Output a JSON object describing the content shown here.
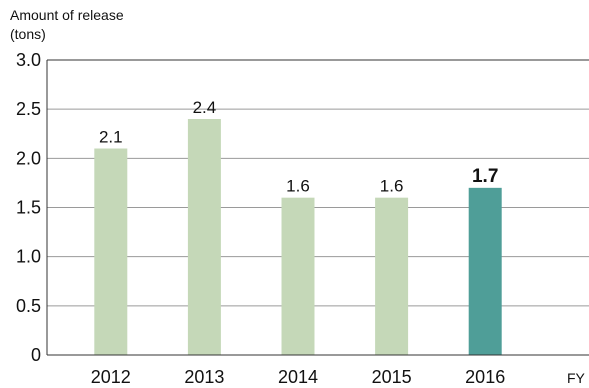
{
  "chart_data": {
    "type": "bar",
    "ylabel_lines": [
      "Amount of release",
      "(tons)"
    ],
    "x_unit": "FY",
    "categories": [
      "2012",
      "2013",
      "2014",
      "2015",
      "2016"
    ],
    "values": [
      2.1,
      2.4,
      1.6,
      1.6,
      1.7
    ],
    "value_labels": [
      "2.1",
      "2.4",
      "1.6",
      "1.6",
      "1.7"
    ],
    "highlight_index": 4,
    "ylim": [
      0,
      3.0
    ],
    "yticks": [
      0,
      0.5,
      1.0,
      1.5,
      2.0,
      2.5,
      3.0
    ],
    "ytick_labels": [
      "0",
      "0.5",
      "1.0",
      "1.5",
      "2.0",
      "2.5",
      "3.0"
    ],
    "grid": true,
    "colors": {
      "bar": "#c5d8b8",
      "highlight": "#4f9e98",
      "grid": "#9a9a9a",
      "axis": "#333333"
    }
  }
}
